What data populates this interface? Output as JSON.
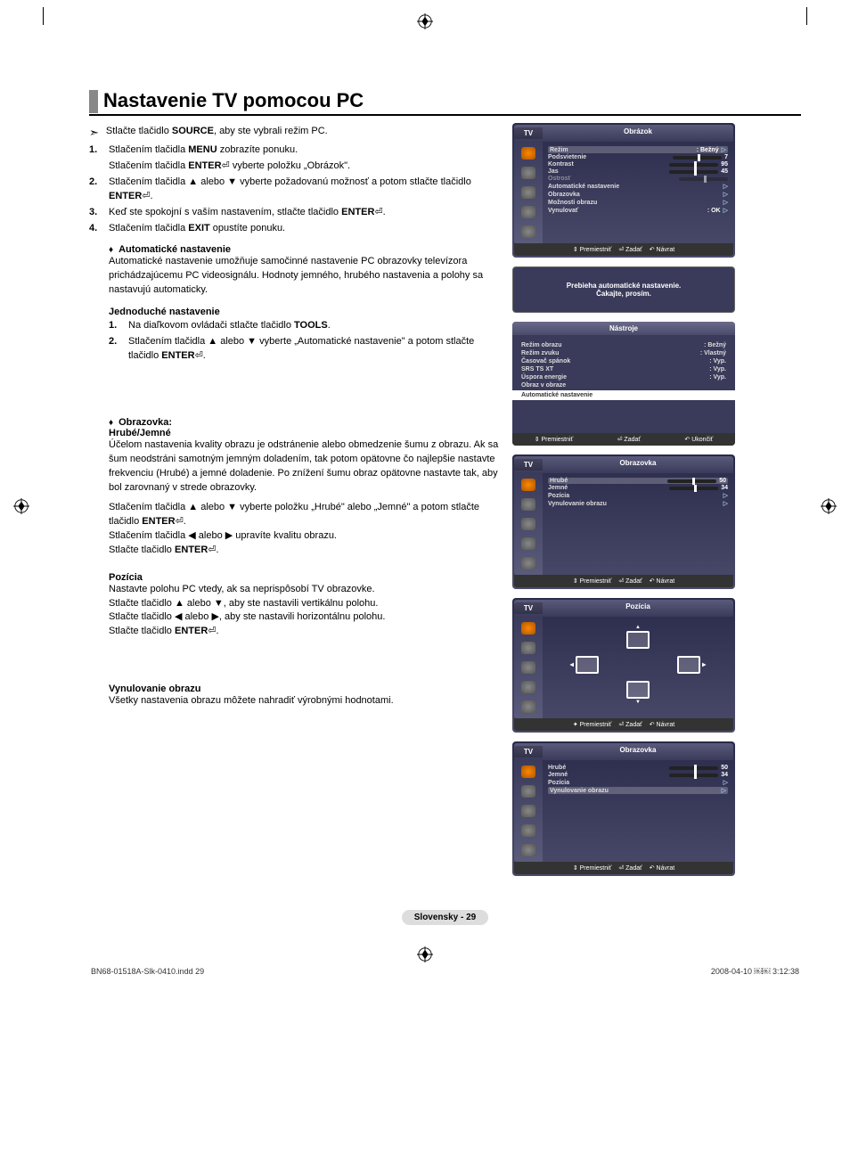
{
  "title": "Nastavenie TV pomocou PC",
  "intro": "Stlačte tlačidlo SOURCE, aby ste vybrali režim PC.",
  "steps": [
    {
      "n": "1.",
      "t": "Stlačením tlačidla MENU zobrazíte ponuku.",
      "t2": "Stlačením tlačidla ENTER⏎ vyberte položku „Obrázok\"."
    },
    {
      "n": "2.",
      "t": "Stlačením tlačidla ▲ alebo ▼ vyberte požadovanú možnosť a potom stlačte tlačidlo ENTER⏎."
    },
    {
      "n": "3.",
      "t": "Keď ste spokojní s vaším nastavením, stlačte tlačidlo ENTER⏎."
    },
    {
      "n": "4.",
      "t": "Stlačením tlačidla EXIT opustíte ponuku."
    }
  ],
  "auto": {
    "title": "Automatické nastavenie",
    "body": "Automatické nastavenie umožňuje samočinné nastavenie PC obrazovky televízora prichádzajúcemu PC videosignálu. Hodnoty jemného, hrubého nastavenia a polohy sa nastavujú automaticky."
  },
  "easy": {
    "title": "Jednoduché nastavenie",
    "s1": "Na diaľkovom ovládači stlačte tlačidlo TOOLS.",
    "s2": "Stlačením tlačidla ▲ alebo ▼ vyberte „Automatické nastavenie\" a potom stlačte tlačidlo ENTER⏎."
  },
  "screen": {
    "title": "Obrazovka:",
    "sub": "Hrubé/Jemné",
    "body": "Účelom nastavenia kvality obrazu je odstránenie alebo obmedzenie šumu z obrazu. Ak sa šum neodstráni samotným jemným doladením, tak potom opätovne čo najlepšie nastavte frekvenciu (Hrubé) a jemné doladenie. Po znížení šumu obraz opätovne nastavte tak, aby bol zarovnaný v strede obrazovky.",
    "l1": "Stlačením tlačidla ▲ alebo ▼ vyberte položku „Hrubé\" alebo „Jemné\" a potom stlačte tlačidlo ENTER⏎.",
    "l2": "Stlačením tlačidla ◀ alebo ▶ upravíte kvalitu obrazu.",
    "l3": "Stlačte tlačidlo ENTER⏎."
  },
  "pos": {
    "title": "Pozícia",
    "l1": "Nastavte polohu PC vtedy, ak sa neprispôsobí TV obrazovke.",
    "l2": "Stlačte tlačidlo ▲ alebo ▼, aby ste nastavili vertikálnu polohu.",
    "l3": "Stlačte tlačidlo ◀ alebo ▶, aby ste nastavili horizontálnu polohu.",
    "l4": "Stlačte tlačidlo ENTER⏎."
  },
  "reset": {
    "title": "Vynulovanie obrazu",
    "body": "Všetky nastavenia obrazu môžete nahradiť výrobnými hodnotami."
  },
  "osd1": {
    "tv": "TV",
    "title": "Obrázok",
    "rows": [
      {
        "l": "Režim",
        "v": ": Bežný",
        "hl": true,
        "tri": true
      },
      {
        "l": "Podsvietenie",
        "v": "7",
        "slider": true
      },
      {
        "l": "Kontrast",
        "v": "95",
        "slider": true
      },
      {
        "l": "Jas",
        "v": "45",
        "slider": true
      },
      {
        "l": "Ostrosť",
        "v": "",
        "slider": true,
        "dim": true
      },
      {
        "l": "Automatické nastavenie",
        "tri": true
      },
      {
        "l": "Obrazovka",
        "tri": true
      },
      {
        "l": "Možnosti obrazu",
        "tri": true
      },
      {
        "l": "Vynulovať",
        "v": ": OK",
        "tri": true
      }
    ],
    "foot": [
      "⇕ Premiestniť",
      "⏎ Zadať",
      "↶ Návrat"
    ]
  },
  "msg": "Prebieha automatické nastavenie.\nČakajte, prosím.",
  "tools": {
    "title": "Nástroje",
    "rows": [
      {
        "l": "Režim obrazu",
        "v": ": Bežný"
      },
      {
        "l": "Režim zvuku",
        "v": ": Vlastný"
      },
      {
        "l": "Časovač spánok",
        "v": ": Vyp."
      },
      {
        "l": "SRS TS XT",
        "v": ": Vyp."
      },
      {
        "l": "Úspora energie",
        "v": ": Vyp."
      },
      {
        "l": "Obraz v obraze",
        "v": ""
      }
    ],
    "hl": "Automatické nastavenie",
    "foot": [
      "⇕ Premiestniť",
      "⏎ Zadať",
      "↶ Ukončiť"
    ]
  },
  "osd2": {
    "tv": "TV",
    "title": "Obrazovka",
    "rows": [
      {
        "l": "Hrubé",
        "v": "50",
        "slider": true,
        "hl": true
      },
      {
        "l": "Jemné",
        "v": "34",
        "slider": true
      },
      {
        "l": "Pozícia",
        "tri": true
      },
      {
        "l": "Vynulovanie obrazu",
        "tri": true
      }
    ],
    "foot": [
      "⇕ Premiestniť",
      "⏎ Zadať",
      "↶ Návrat"
    ]
  },
  "osd3": {
    "tv": "TV",
    "title": "Pozícia",
    "foot": [
      "✦ Premiestniť",
      "⏎ Zadať",
      "↶ Návrat"
    ]
  },
  "osd4": {
    "tv": "TV",
    "title": "Obrazovka",
    "rows": [
      {
        "l": "Hrubé",
        "v": "50",
        "slider": true
      },
      {
        "l": "Jemné",
        "v": "34",
        "slider": true
      },
      {
        "l": "Pozícia",
        "tri": true
      },
      {
        "l": "Vynulovanie obrazu",
        "tri": true,
        "hl": true
      }
    ],
    "foot": [
      "⇕ Premiestniť",
      "⏎ Zadať",
      "↶ Návrat"
    ]
  },
  "pagefoot": "Slovensky - 29",
  "file": {
    "l": "BN68-01518A-Slk-0410.indd   29",
    "r": "2008-04-10   ￼￼ 3:12:38"
  }
}
